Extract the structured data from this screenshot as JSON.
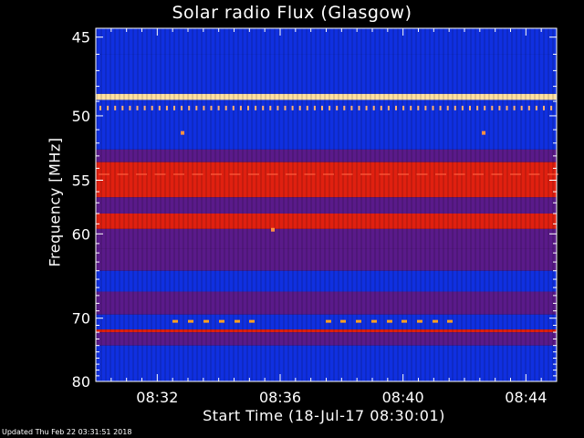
{
  "chart_data": {
    "type": "heatmap",
    "title": "Solar radio Flux (Glasgow)",
    "xlabel": "Start Time (18-Jul-17 08:30:01)",
    "ylabel": "Frequency [MHz]",
    "x_ticks": [
      "08:32",
      "08:36",
      "08:40",
      "08:44"
    ],
    "x_tick_minutes": [
      2,
      6,
      10,
      14
    ],
    "x_range_minutes": [
      0,
      15
    ],
    "y_ticks": [
      45,
      50,
      55,
      60,
      70,
      80
    ],
    "ylim": [
      44.5,
      80
    ],
    "y_scale": "reciprocal",
    "colors": {
      "background": "#000000",
      "low": "#1030e0",
      "mid": "#5a1a8a",
      "high": "#e02010",
      "peak": "#ffe0a0"
    },
    "bands": [
      {
        "freq_from": 44.5,
        "freq_to": 46.0,
        "level": "low"
      },
      {
        "freq_from": 46.0,
        "freq_to": 48.5,
        "level": "low"
      },
      {
        "freq_from": 48.5,
        "freq_to": 48.9,
        "level": "peak"
      },
      {
        "freq_from": 48.9,
        "freq_to": 52.5,
        "level": "low"
      },
      {
        "freq_from": 52.5,
        "freq_to": 53.5,
        "level": "mid"
      },
      {
        "freq_from": 53.5,
        "freq_to": 56.5,
        "level": "high"
      },
      {
        "freq_from": 56.5,
        "freq_to": 58.0,
        "level": "mid"
      },
      {
        "freq_from": 58.0,
        "freq_to": 59.5,
        "level": "high"
      },
      {
        "freq_from": 59.5,
        "freq_to": 61.5,
        "level": "mid"
      },
      {
        "freq_from": 61.5,
        "freq_to": 64.0,
        "level": "mid"
      },
      {
        "freq_from": 64.0,
        "freq_to": 66.5,
        "level": "low"
      },
      {
        "freq_from": 66.5,
        "freq_to": 69.5,
        "level": "mid"
      },
      {
        "freq_from": 69.5,
        "freq_to": 71.6,
        "level": "low"
      },
      {
        "freq_from": 71.6,
        "freq_to": 72.0,
        "level": "high"
      },
      {
        "freq_from": 72.0,
        "freq_to": 74.0,
        "level": "mid"
      },
      {
        "freq_from": 74.0,
        "freq_to": 80.0,
        "level": "low"
      }
    ]
  },
  "footer": "Updated Thu Feb 22 03:31:51 2018"
}
